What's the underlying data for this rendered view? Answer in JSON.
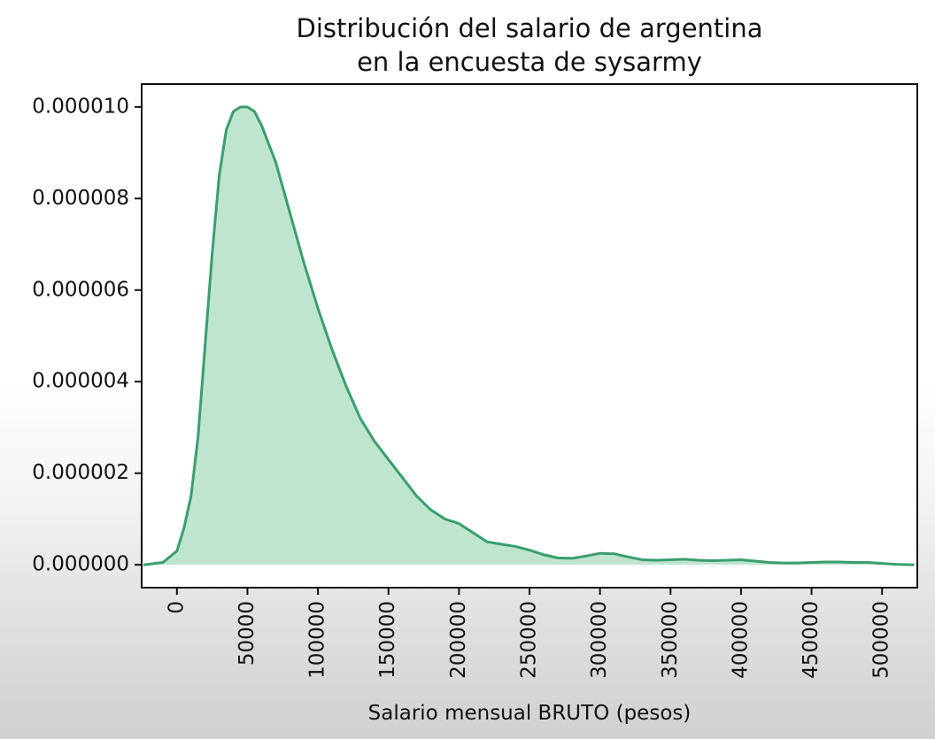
{
  "chart_data": {
    "type": "area",
    "title_lines": [
      "Distribución del salario de argentina",
      "en la encuesta de sysarmy"
    ],
    "xlabel": "Salario mensual BRUTO (pesos)",
    "ylabel": "",
    "xlim": [
      -25000,
      525000
    ],
    "ylim": [
      -5e-07,
      1.05e-05
    ],
    "x_ticks": [
      0,
      50000,
      100000,
      150000,
      200000,
      250000,
      300000,
      350000,
      400000,
      450000,
      500000
    ],
    "x_tick_labels": [
      "0",
      "50000",
      "100000",
      "150000",
      "200000",
      "250000",
      "300000",
      "350000",
      "400000",
      "450000",
      "500000"
    ],
    "y_ticks": [
      0,
      2e-06,
      4e-06,
      6e-06,
      8e-06,
      1e-05
    ],
    "y_tick_labels": [
      "0.000000",
      "0.000002",
      "0.000004",
      "0.000006",
      "0.000008",
      "0.000010"
    ],
    "grid": false,
    "colors": {
      "line": "#3a9e6e",
      "fill": "#a9dcc0"
    },
    "series": [
      {
        "x": [
          -23000,
          -10000,
          0,
          5000,
          10000,
          15000,
          20000,
          25000,
          30000,
          35000,
          40000,
          45000,
          50000,
          55000,
          60000,
          70000,
          80000,
          90000,
          100000,
          110000,
          120000,
          130000,
          140000,
          150000,
          160000,
          170000,
          180000,
          190000,
          200000,
          210000,
          220000,
          230000,
          240000,
          250000,
          260000,
          270000,
          280000,
          290000,
          300000,
          310000,
          320000,
          330000,
          340000,
          350000,
          360000,
          370000,
          380000,
          390000,
          400000,
          410000,
          420000,
          430000,
          440000,
          450000,
          460000,
          470000,
          480000,
          490000,
          500000,
          510000,
          522000
        ],
        "y": [
          0.0,
          5e-08,
          3e-07,
          8e-07,
          1.5e-06,
          2.8e-06,
          4.8e-06,
          6.8e-06,
          8.5e-06,
          9.5e-06,
          9.9e-06,
          1e-05,
          1e-05,
          9.9e-06,
          9.6e-06,
          8.8e-06,
          7.7e-06,
          6.6e-06,
          5.6e-06,
          4.7e-06,
          3.9e-06,
          3.2e-06,
          2.7e-06,
          2.3e-06,
          1.9e-06,
          1.5e-06,
          1.2e-06,
          1e-06,
          9e-07,
          7e-07,
          5e-07,
          4.5e-07,
          4e-07,
          3.2e-07,
          2.2e-07,
          1.5e-07,
          1.4e-07,
          1.9e-07,
          2.5e-07,
          2.4e-07,
          1.7e-07,
          1.1e-07,
          1e-07,
          1.1e-07,
          1.2e-07,
          1e-07,
          9e-08,
          1e-07,
          1.1e-07,
          8e-08,
          5e-08,
          4e-08,
          4e-08,
          5e-08,
          6e-08,
          6e-08,
          5e-08,
          5e-08,
          3e-08,
          1e-08,
          0.0
        ]
      }
    ]
  }
}
